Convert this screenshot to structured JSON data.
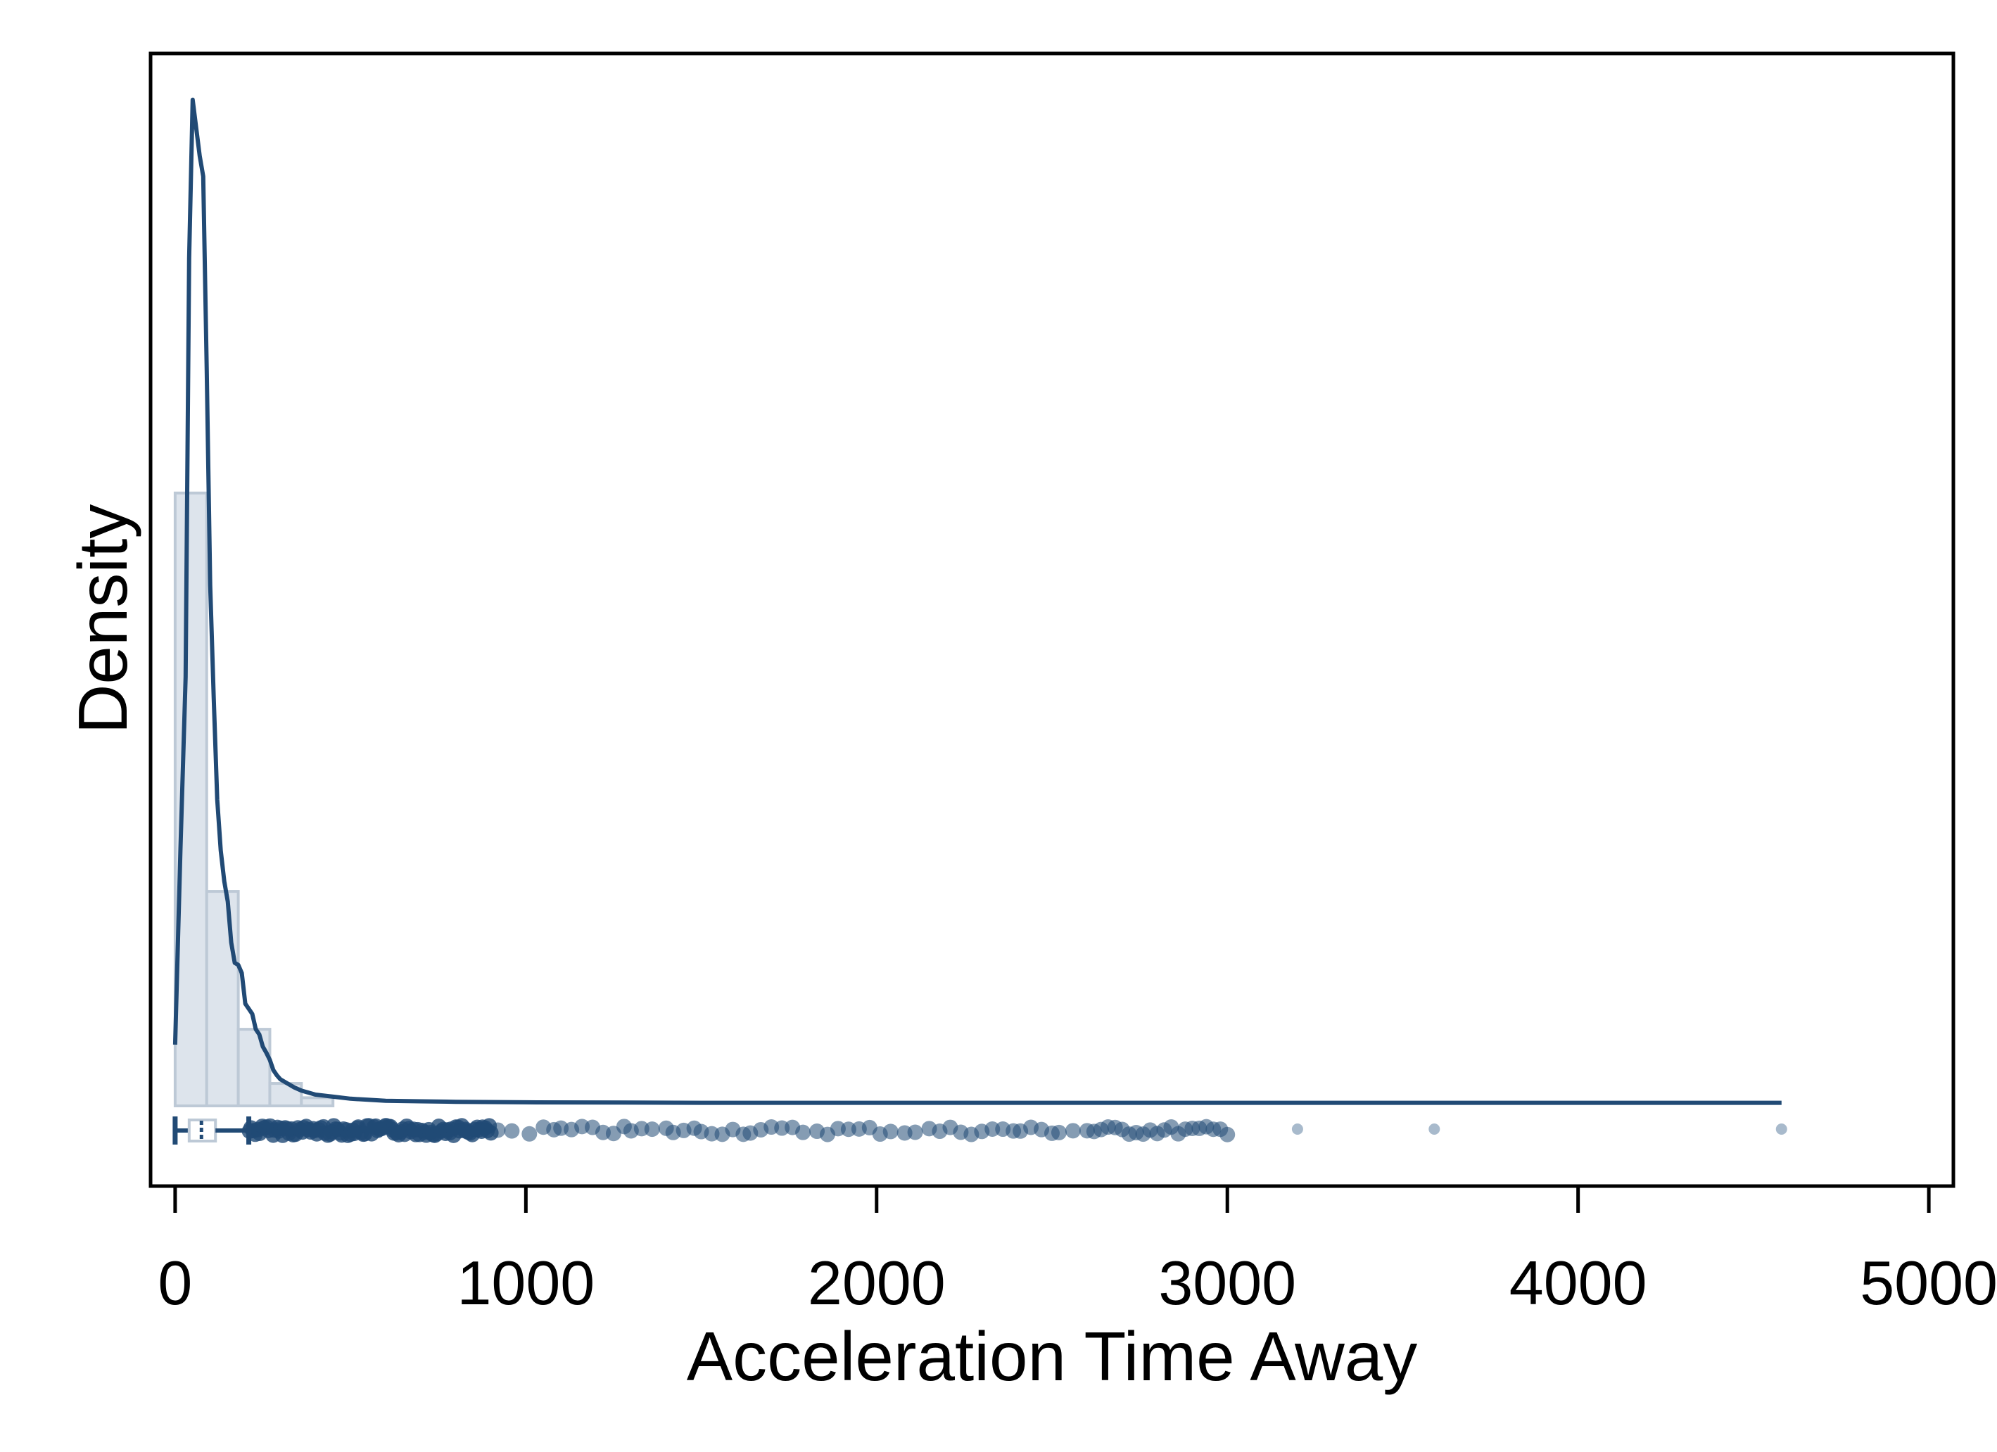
{
  "chart_data": {
    "type": "histogram-density-boxplot",
    "title": "",
    "xlabel": "Acceleration Time Away",
    "ylabel": "Density",
    "xlim": [
      -70,
      5070
    ],
    "x_ticks": [
      0,
      1000,
      2000,
      3000,
      4000,
      5000
    ],
    "y_ticks_shown": false,
    "grid": false,
    "legend": "none",
    "colors": {
      "line": "#214a75",
      "hist_fill": "#dde4ec",
      "hist_stroke": "#bdc9d6",
      "points": "#214a75",
      "points_light": "#9fb2c6"
    },
    "histogram": {
      "bin_width": 90,
      "bins_start": [
        0,
        90,
        180,
        270,
        360
      ],
      "heights": [
        0.6,
        0.21,
        0.075,
        0.022,
        0.008
      ]
    },
    "density": {
      "x": [
        0,
        15,
        30,
        40,
        50,
        70,
        80,
        90,
        100,
        110,
        120,
        130,
        140,
        150,
        160,
        170,
        180,
        190,
        200,
        210,
        220,
        230,
        240,
        250,
        260,
        270,
        280,
        290,
        300,
        320,
        340,
        360,
        380,
        400,
        450,
        500,
        550,
        600,
        700,
        800,
        1000,
        1500,
        2000,
        3000,
        4000,
        4580
      ],
      "y": [
        0.06,
        0.25,
        0.42,
        0.83,
        0.985,
        0.93,
        0.91,
        0.72,
        0.51,
        0.4,
        0.3,
        0.25,
        0.22,
        0.2,
        0.16,
        0.14,
        0.138,
        0.13,
        0.1,
        0.095,
        0.09,
        0.075,
        0.07,
        0.058,
        0.052,
        0.045,
        0.035,
        0.03,
        0.026,
        0.022,
        0.018,
        0.015,
        0.013,
        0.011,
        0.009,
        0.007,
        0.006,
        0.005,
        0.0045,
        0.004,
        0.0035,
        0.003,
        0.003,
        0.003,
        0.003,
        0.003
      ]
    },
    "boxplot": {
      "whisker_low": 0,
      "q1": 40,
      "median": 75,
      "q3": 115,
      "whisker_high": 210
    },
    "outliers": {
      "dense_range": [
        210,
        900
      ],
      "x": [
        920,
        960,
        1010,
        1050,
        1080,
        1100,
        1130,
        1160,
        1190,
        1220,
        1250,
        1280,
        1300,
        1330,
        1360,
        1400,
        1420,
        1450,
        1480,
        1500,
        1530,
        1560,
        1590,
        1620,
        1640,
        1670,
        1700,
        1730,
        1760,
        1790,
        1830,
        1860,
        1890,
        1920,
        1950,
        1980,
        2010,
        2040,
        2080,
        2110,
        2150,
        2180,
        2210,
        2240,
        2270,
        2300,
        2330,
        2360,
        2390,
        2410,
        2440,
        2470,
        2500,
        2520,
        2560,
        2600,
        2620,
        2640,
        2660,
        2680,
        2700,
        2720,
        2740,
        2760,
        2780,
        2800,
        2820,
        2840,
        2860,
        2880,
        2900,
        2920,
        2940,
        2960,
        2980,
        3000,
        3200,
        3590,
        4580
      ]
    }
  }
}
